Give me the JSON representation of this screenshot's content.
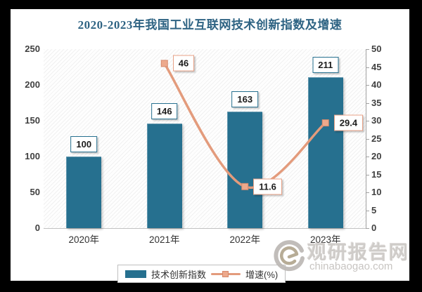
{
  "title": {
    "text": "2020-2023年我国工业互联网技术创新指数及增速",
    "color": "#2e6383"
  },
  "chart_data": {
    "type": "combo-bar-line",
    "categories": [
      "2020年",
      "2021年",
      "2022年",
      "2023年"
    ],
    "series": [
      {
        "name": "技术创新指数",
        "type": "bar",
        "axis": "left",
        "color": "#26708f",
        "values": [
          100,
          146,
          163,
          211
        ],
        "data_labels": [
          "100",
          "146",
          "163",
          "211"
        ]
      },
      {
        "name": "增速(%)",
        "type": "line",
        "axis": "right",
        "color": "#e39b7c",
        "marker_fill": "#eda98c",
        "marker_stroke": "#d5896c",
        "values": [
          null,
          46,
          11.6,
          29.4
        ],
        "data_labels": [
          null,
          "46",
          "11.6",
          "29.4"
        ]
      }
    ],
    "left_axis": {
      "min": 0,
      "max": 250,
      "step": 50,
      "ticks": [
        "0",
        "50",
        "100",
        "150",
        "200",
        "250"
      ]
    },
    "right_axis": {
      "min": 0,
      "max": 50,
      "step": 5,
      "ticks": [
        "0",
        "5",
        "10",
        "15",
        "20",
        "25",
        "30",
        "35",
        "40",
        "45",
        "50"
      ]
    },
    "grid": false,
    "plot_background": "diagonal-hatch",
    "legend_position": "bottom-center"
  },
  "legend": {
    "bar_label": "技术创新指数",
    "line_label": "增速(%)"
  },
  "watermark": {
    "site_name": "观研报告网",
    "site_url": "chinabaogao.com",
    "logo": "swirl-logo"
  },
  "colors": {
    "bar": "#26708f",
    "line": "#e39b7c",
    "line_label_border": "#e8a287",
    "bar_label_border": "#26708f",
    "title": "#2e6383",
    "frame_border": "#000000"
  }
}
